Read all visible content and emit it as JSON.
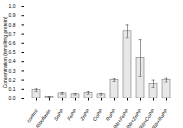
{
  "chart_data": {
    "type": "bar",
    "categories": [
      "control",
      "Riboflavin",
      "SnPP",
      "FePP",
      "ZnPP",
      "CoPP",
      "RuPP",
      "Rib+FePP",
      "Rib+ZnPP",
      "Rib+CoPP",
      "Rib+RuPP"
    ],
    "values": [
      0.09,
      0.015,
      0.055,
      0.045,
      0.06,
      0.045,
      0.2,
      0.73,
      0.44,
      0.16,
      0.2
    ],
    "errors": [
      0.015,
      0.005,
      0.01,
      0.008,
      0.015,
      0.008,
      0.015,
      0.07,
      0.2,
      0.04,
      0.02
    ],
    "color": "#e8e8e8",
    "ylabel": "Concentration (nmol/mg protein)",
    "ylim": [
      0,
      1.0
    ],
    "yticks": [
      {
        "value": 0,
        "label": "0.0"
      },
      0.1,
      0.2,
      0.3,
      0.4,
      0.5,
      0.6,
      0.7,
      0.8,
      0.9,
      {
        "value": 1,
        "label": "1.0"
      }
    ]
  }
}
